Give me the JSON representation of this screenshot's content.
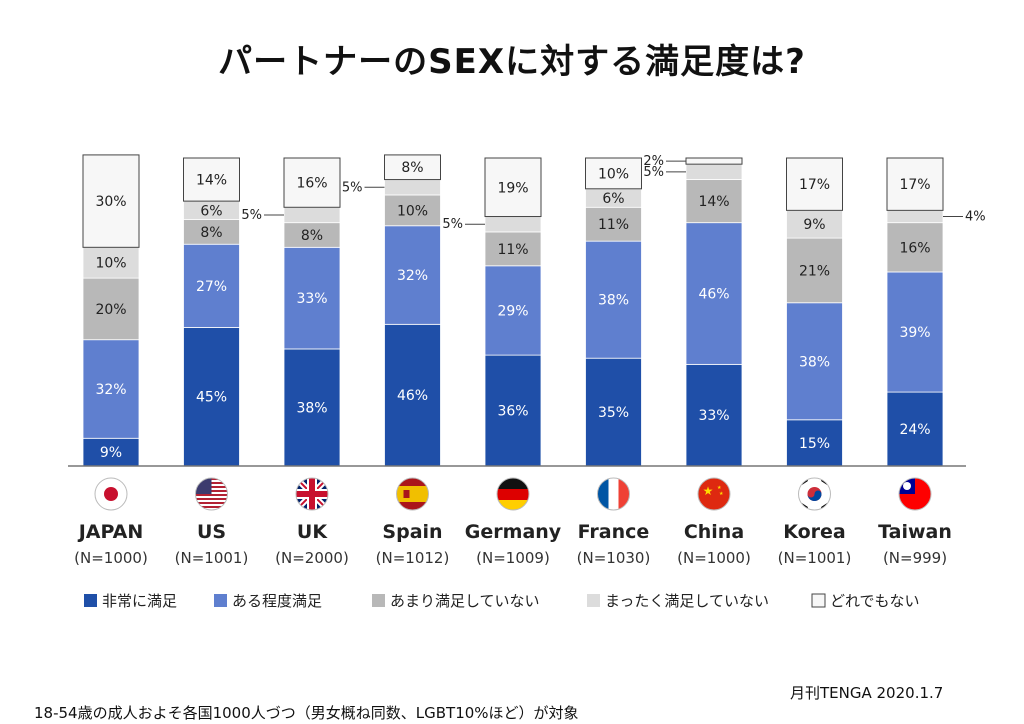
{
  "title": "パートナーのSEXに対する満足度は?",
  "footnote_left": "18-54歳の成人およそ各国1000人づつ（男女概ね同数、LGBT10%ほど）が対象",
  "footnote_right": "月刊TENGA 2020.1.7",
  "colors": {
    "very_satisfied": "#1f4fa8",
    "somewhat_satisfied": "#5f7fcf",
    "not_very_satisfied": "#b8b8b8",
    "not_at_all_satisfied": "#dcdcdc",
    "neither": "#f7f7f7",
    "flag_japan": "#c8102e",
    "flag_us_blue": "#3c3b6e",
    "flag_uk_blue": "#012169",
    "flag_spain_yellow": "#f1bf00",
    "flag_germany_black": "#111111",
    "flag_france_blue": "#0055a4",
    "flag_china_red": "#de2910",
    "flag_taiwan_red": "#fe0000"
  },
  "chart_data": {
    "type": "bar",
    "stacked": true,
    "categories": [
      "JAPAN",
      "US",
      "UK",
      "Spain",
      "Germany",
      "France",
      "China",
      "Korea",
      "Taiwan"
    ],
    "sample_sizes": [
      "(N=1000)",
      "(N=1001)",
      "(N=2000)",
      "(N=1012)",
      "(N=1009)",
      "(N=1030)",
      "(N=1000)",
      "(N=1001)",
      "(N=999)"
    ],
    "flags": [
      "japan-flag-icon",
      "us-flag-icon",
      "uk-flag-icon",
      "spain-flag-icon",
      "germany-flag-icon",
      "france-flag-icon",
      "china-flag-icon",
      "korea-flag-icon",
      "taiwan-flag-icon"
    ],
    "series": [
      {
        "name": "非常に満足",
        "values": [
          9,
          45,
          38,
          46,
          36,
          35,
          33,
          15,
          24
        ]
      },
      {
        "name": "ある程度満足",
        "values": [
          32,
          27,
          33,
          32,
          29,
          38,
          46,
          38,
          39
        ]
      },
      {
        "name": "あまり満足していない",
        "values": [
          20,
          8,
          8,
          10,
          11,
          11,
          14,
          21,
          16
        ]
      },
      {
        "name": "まったく満足していない",
        "values": [
          10,
          6,
          5,
          5,
          5,
          6,
          5,
          9,
          4
        ]
      },
      {
        "name": "どれでもない",
        "values": [
          30,
          14,
          16,
          8,
          19,
          10,
          2,
          17,
          17
        ]
      }
    ],
    "bar_labels": [
      [
        "9%",
        "32%",
        "20%",
        "10%",
        "30%"
      ],
      [
        "45%",
        "27%",
        "8%",
        "6%",
        "14%"
      ],
      [
        "38%",
        "33%",
        "8%",
        "5%",
        "16%"
      ],
      [
        "46%",
        "32%",
        "10%",
        "5%",
        "8%"
      ],
      [
        "36%",
        "29%",
        "11%",
        "5%",
        "19%"
      ],
      [
        "35%",
        "38%",
        "11%",
        "6%",
        "10%"
      ],
      [
        "33%",
        "46%",
        "14%",
        "5%",
        "2%"
      ],
      [
        "15%",
        "38%",
        "21%",
        "9%",
        "17%"
      ],
      [
        "24%",
        "39%",
        "16%",
        "4%",
        "17%"
      ]
    ],
    "outside_label_side": [
      "",
      "",
      "left",
      "left",
      "left",
      "",
      "left",
      "",
      "right"
    ],
    "legend": [
      "非常に満足",
      "ある程度満足",
      "あまり満足していない",
      "まったく満足していない",
      "どれでもない"
    ],
    "ylim": [
      0,
      100
    ]
  }
}
